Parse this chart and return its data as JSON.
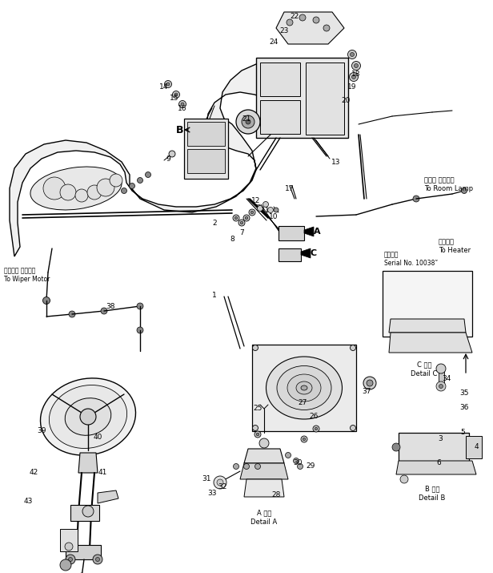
{
  "background_color": "#ffffff",
  "line_color": "#000000",
  "fig_width": 6.16,
  "fig_height": 7.15,
  "dpi": 100,
  "annotations": {
    "text_right1": "ルーム ランプへ",
    "text_right2": "To Room Lamp",
    "text_right3": "ヒータへ",
    "text_right4": "To Heater",
    "text_left1": "ワイパー モータへ",
    "text_left2": "To Wiper Motor",
    "text_serial1": "適用号等",
    "text_serial2": "Serial No. 10038˜",
    "text_detailA1": "A 詳細",
    "text_detailA2": "Detail A",
    "text_detailB1": "B 詳細",
    "text_detailB2": "Detail B",
    "text_detailC1": "C 詳細",
    "text_detailC2": "Detail C"
  }
}
